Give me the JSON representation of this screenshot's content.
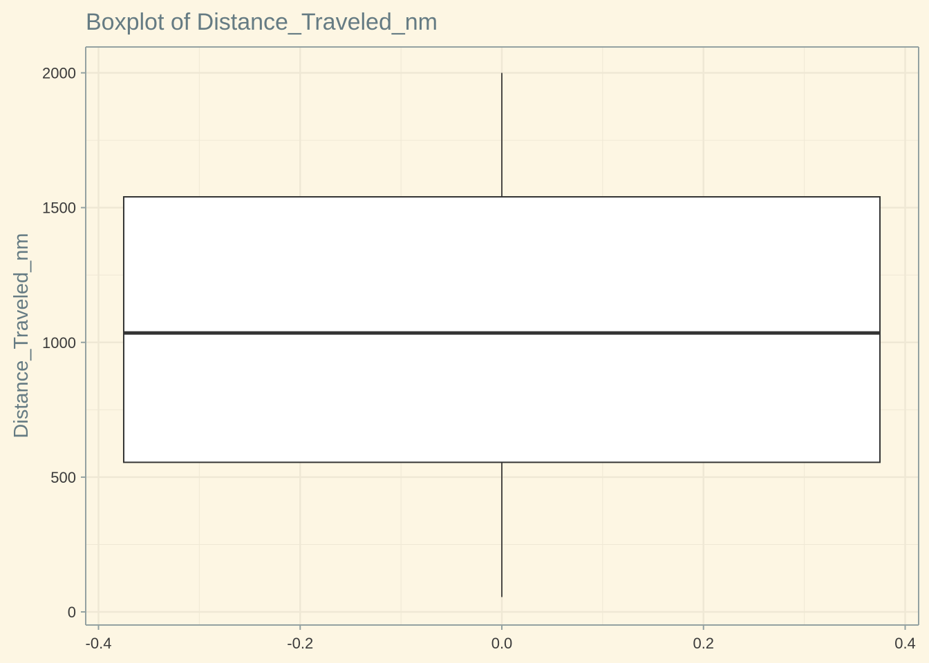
{
  "chart_data": {
    "type": "boxplot",
    "title": "Boxplot of Distance_Traveled_nm",
    "xlabel": "",
    "ylabel": "Distance_Traveled_nm",
    "xlim": [
      -0.4,
      0.4
    ],
    "ylim": [
      0,
      2000
    ],
    "x_ticks": [
      "-0.4",
      "-0.2",
      "0.0",
      "0.2",
      "0.4"
    ],
    "y_ticks": [
      "0",
      "500",
      "1000",
      "1500",
      "2000"
    ],
    "box": {
      "x_left": -0.375,
      "x_right": 0.375,
      "x_center": 0,
      "whisker_low": 55,
      "q1": 555,
      "median": 1035,
      "q3": 1540,
      "whisker_high": 2000
    },
    "grid": true,
    "colors": {
      "background": "#fdf6e3",
      "grid": "#efe8d5",
      "axis": "#93a1a1",
      "box_fill": "#ffffff",
      "box_stroke": "#333333",
      "title": "#657b83"
    }
  }
}
